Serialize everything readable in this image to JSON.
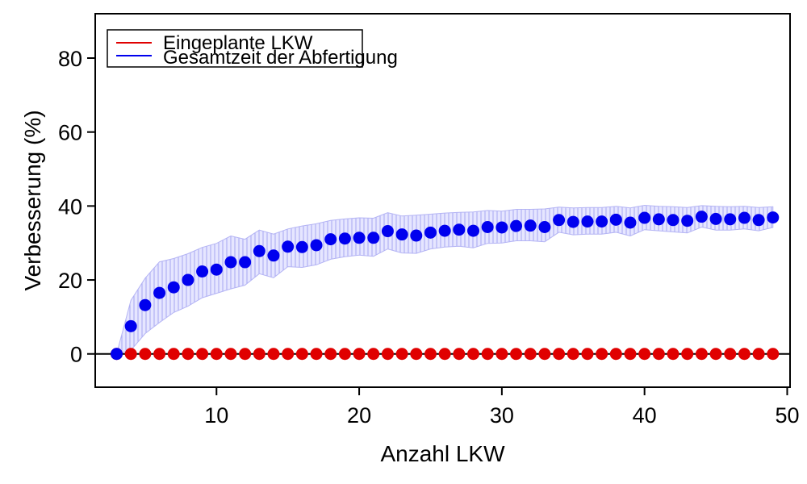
{
  "chart_data": {
    "type": "scatter",
    "xlabel": "Anzahl LKW",
    "ylabel": "Verbesserung (%)",
    "xlim": [
      1.5,
      50.2
    ],
    "ylim": [
      -9,
      92
    ],
    "x_ticks": [
      10,
      20,
      30,
      40,
      50
    ],
    "y_ticks": [
      0,
      20,
      40,
      60,
      80
    ],
    "legend_position": "top-left",
    "reference_line_y": 0,
    "colors": {
      "red": "#e00000",
      "blue": "#0000ee",
      "band_fill": "#dcdcff",
      "band_hatch": "#a0a0f0"
    },
    "series": [
      {
        "name": "Eingeplante LKW",
        "color": "red",
        "x": [
          3,
          4,
          5,
          6,
          7,
          8,
          9,
          10,
          11,
          12,
          13,
          14,
          15,
          16,
          17,
          18,
          19,
          20,
          21,
          22,
          23,
          24,
          25,
          26,
          27,
          28,
          29,
          30,
          31,
          32,
          33,
          34,
          35,
          36,
          37,
          38,
          39,
          40,
          41,
          42,
          43,
          44,
          45,
          46,
          47,
          48,
          49
        ],
        "y": [
          0,
          0,
          0,
          0,
          0,
          0,
          0,
          0,
          0,
          0,
          0,
          0,
          0,
          0,
          0,
          0,
          0,
          0,
          0,
          0,
          0,
          0,
          0,
          0,
          0,
          0,
          0,
          0,
          0,
          0,
          0,
          0,
          0,
          0,
          0,
          0,
          0,
          0,
          0,
          0,
          0,
          0,
          0,
          0,
          0,
          0,
          0
        ]
      },
      {
        "name": "Gesamtzeit der Abfertigung",
        "color": "blue",
        "x": [
          3,
          4,
          5,
          6,
          7,
          8,
          9,
          10,
          11,
          12,
          13,
          14,
          15,
          16,
          17,
          18,
          19,
          20,
          21,
          22,
          23,
          24,
          25,
          26,
          27,
          28,
          29,
          30,
          31,
          32,
          33,
          34,
          35,
          36,
          37,
          38,
          39,
          40,
          41,
          42,
          43,
          44,
          45,
          46,
          47,
          48,
          49
        ],
        "y": [
          0,
          7.5,
          13.2,
          16.5,
          18,
          20,
          22.3,
          22.8,
          24.8,
          24.8,
          27.8,
          26.6,
          29,
          28.9,
          29.4,
          31,
          31.2,
          31.4,
          31.4,
          33.2,
          32.3,
          32,
          32.8,
          33.3,
          33.6,
          33.3,
          34.3,
          34.2,
          34.6,
          34.7,
          34.3,
          36.2,
          35.7,
          35.8,
          35.8,
          36.3,
          35.5,
          36.8,
          36.4,
          36.2,
          36,
          37.1,
          36.5,
          36.4,
          36.8,
          36.2,
          36.9
        ],
        "upper": [
          0,
          14.5,
          20.5,
          24.9,
          25.8,
          27.1,
          28.8,
          29.9,
          31.9,
          31,
          33.5,
          32.4,
          33.8,
          34.6,
          35.2,
          36.1,
          36.5,
          36.8,
          36.7,
          38.2,
          37.3,
          37.5,
          37.8,
          38.1,
          38.3,
          38.4,
          38.8,
          38.6,
          39.1,
          39.1,
          39.2,
          39.7,
          39.5,
          39.6,
          39.6,
          39.9,
          39.5,
          40.2,
          39.9,
          39.8,
          39.6,
          40.1,
          39.9,
          39.8,
          39.9,
          39.6,
          39.8
        ],
        "lower": [
          0,
          1,
          5.5,
          8.5,
          11.2,
          12.9,
          15.2,
          16.4,
          17.6,
          18.6,
          21.7,
          20.6,
          23.6,
          23.4,
          24.1,
          25.6,
          26.3,
          26.7,
          26.4,
          28.4,
          27.3,
          27.2,
          28.4,
          28.9,
          29.1,
          28.7,
          29.9,
          30,
          30.6,
          30.6,
          30.3,
          32.9,
          32.2,
          32.4,
          32.4,
          32.9,
          31.9,
          33.6,
          33.3,
          33,
          32.7,
          34.3,
          33.5,
          33.5,
          33.8,
          33.3,
          34.2
        ]
      }
    ]
  }
}
